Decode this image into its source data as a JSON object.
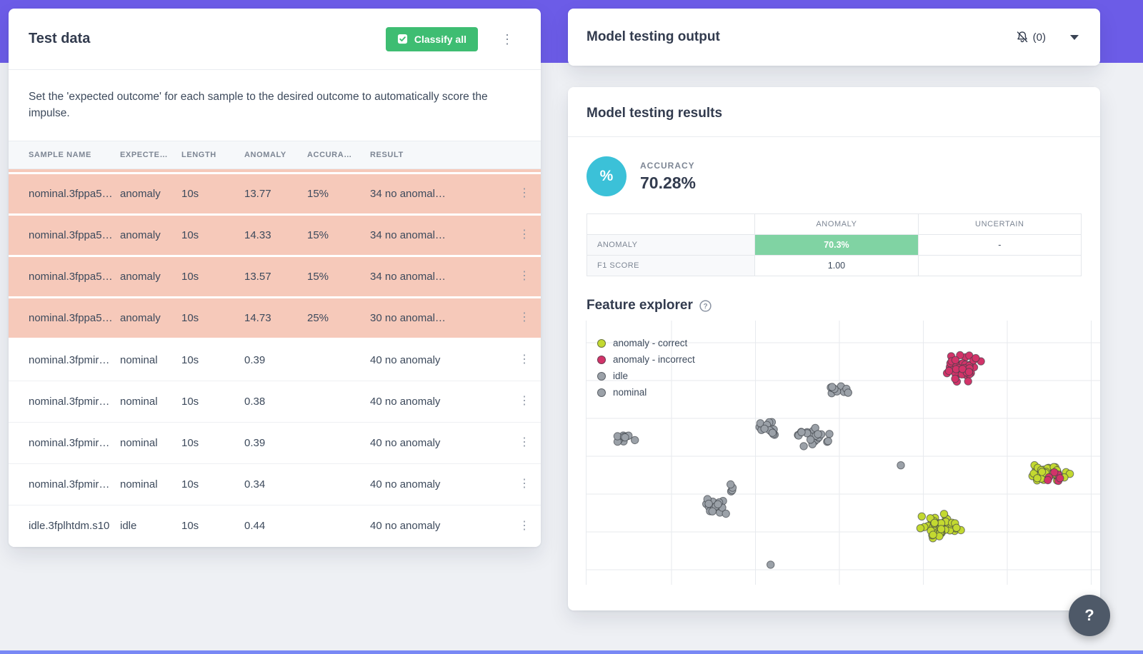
{
  "colors": {
    "accent": "#6C5CE7",
    "green": "#3EBD72",
    "salmon": "#F6C9BA",
    "teal": "#3BC1D8",
    "matrix_green": "#80D3A3"
  },
  "left_panel": {
    "title": "Test data",
    "classify_all_label": "Classify all",
    "menu_icon": "⋮",
    "description": "Set the 'expected outcome' for each sample to the desired outcome to automatically score the impulse.",
    "table": {
      "headers": [
        "SAMPLE NAME",
        "EXPECTE…",
        "LENGTH",
        "ANOMALY",
        "ACCURA…",
        "RESULT"
      ],
      "rows": [
        {
          "sample_name": "nominal.3fppa5…",
          "expected_outcome": "anomaly",
          "length": "10s",
          "anomaly": "13.77",
          "accuracy": "15%",
          "result": "34 no anomal…",
          "highlighted": true
        },
        {
          "sample_name": "nominal.3fppa5…",
          "expected_outcome": "anomaly",
          "length": "10s",
          "anomaly": "14.33",
          "accuracy": "15%",
          "result": "34 no anomal…",
          "highlighted": true
        },
        {
          "sample_name": "nominal.3fppa5…",
          "expected_outcome": "anomaly",
          "length": "10s",
          "anomaly": "13.57",
          "accuracy": "15%",
          "result": "34 no anomal…",
          "highlighted": true
        },
        {
          "sample_name": "nominal.3fppa5…",
          "expected_outcome": "anomaly",
          "length": "10s",
          "anomaly": "14.73",
          "accuracy": "25%",
          "result": "30 no anomal…",
          "highlighted": true
        },
        {
          "sample_name": "nominal.3fpmir…",
          "expected_outcome": "nominal",
          "length": "10s",
          "anomaly": "0.39",
          "accuracy": "",
          "result": "40 no anomaly",
          "highlighted": false
        },
        {
          "sample_name": "nominal.3fpmir…",
          "expected_outcome": "nominal",
          "length": "10s",
          "anomaly": "0.38",
          "accuracy": "",
          "result": "40 no anomaly",
          "highlighted": false
        },
        {
          "sample_name": "nominal.3fpmir…",
          "expected_outcome": "nominal",
          "length": "10s",
          "anomaly": "0.39",
          "accuracy": "",
          "result": "40 no anomaly",
          "highlighted": false
        },
        {
          "sample_name": "nominal.3fpmir…",
          "expected_outcome": "nominal",
          "length": "10s",
          "anomaly": "0.34",
          "accuracy": "",
          "result": "40 no anomaly",
          "highlighted": false
        },
        {
          "sample_name": "idle.3fplhtdm.s10",
          "expected_outcome": "idle",
          "length": "10s",
          "anomaly": "0.44",
          "accuracy": "",
          "result": "40 no anomaly",
          "highlighted": false
        }
      ]
    }
  },
  "right_panel": {
    "header_title": "Model testing output",
    "notifications_count": "(0)",
    "results_card": {
      "title": "Model testing results",
      "accuracy_label": "ACCURACY",
      "accuracy_value": "70.28%",
      "percent_symbol": "%",
      "matrix": {
        "columns": [
          "ANOMALY",
          "UNCERTAIN"
        ],
        "rows": [
          {
            "label": "ANOMALY",
            "values": [
              "70.3%",
              "-"
            ],
            "highlight_col": 0
          },
          {
            "label": "F1 SCORE",
            "values": [
              "1.00",
              ""
            ],
            "highlight_col": -1
          }
        ]
      },
      "feature_explorer_title": "Feature explorer",
      "help_icon": "?"
    }
  },
  "help_fab": "?",
  "chart_data": {
    "type": "scatter",
    "title": "Feature explorer",
    "xlabel": "",
    "ylabel": "",
    "grid": true,
    "axis_tick_labels_visible": false,
    "legend_position": "top-left",
    "legend": [
      {
        "label": "anomaly - correct",
        "color": "#C3D930"
      },
      {
        "label": "anomaly - incorrect",
        "color": "#D23369"
      },
      {
        "label": "idle",
        "color": "#9BA1A8"
      },
      {
        "label": "nominal",
        "color": "#9BA1A8"
      }
    ],
    "clusters": [
      {
        "series": "nominal",
        "color": "#9BA1A8",
        "x": 0.076,
        "y": 0.443,
        "sx": 0.016,
        "sy": 0.01,
        "n": 10
      },
      {
        "series": "nominal",
        "color": "#9BA1A8",
        "x": 0.354,
        "y": 0.408,
        "sx": 0.017,
        "sy": 0.018,
        "n": 14
      },
      {
        "series": "nominal",
        "color": "#9BA1A8",
        "x": 0.441,
        "y": 0.441,
        "sx": 0.025,
        "sy": 0.024,
        "n": 22
      },
      {
        "series": "nominal",
        "color": "#9BA1A8",
        "x": 0.482,
        "y": 0.262,
        "sx": 0.027,
        "sy": 0.012,
        "n": 14
      },
      {
        "series": "nominal",
        "color": "#9BA1A8",
        "x": 0.608,
        "y": 0.549,
        "sx": 0.003,
        "sy": 0.004,
        "n": 1
      },
      {
        "series": "idle",
        "color": "#9BA1A8",
        "x": 0.25,
        "y": 0.703,
        "sx": 0.02,
        "sy": 0.024,
        "n": 16
      },
      {
        "series": "idle",
        "color": "#9BA1A8",
        "x": 0.29,
        "y": 0.64,
        "sx": 0.008,
        "sy": 0.012,
        "n": 4
      },
      {
        "series": "idle",
        "color": "#9BA1A8",
        "x": 0.358,
        "y": 0.924,
        "sx": 0.003,
        "sy": 0.004,
        "n": 1
      },
      {
        "series": "anomaly - incorrect",
        "color": "#D23369",
        "x": 0.729,
        "y": 0.181,
        "sx": 0.022,
        "sy": 0.03,
        "n": 42
      },
      {
        "series": "anomaly - correct",
        "color": "#C3D930",
        "x": 0.694,
        "y": 0.781,
        "sx": 0.026,
        "sy": 0.026,
        "n": 48
      },
      {
        "series": "anomaly - correct",
        "color": "#C3D930",
        "x": 0.9,
        "y": 0.576,
        "sx": 0.023,
        "sy": 0.023,
        "n": 36
      },
      {
        "series": "anomaly - incorrect",
        "color": "#D23369",
        "x": 0.912,
        "y": 0.593,
        "sx": 0.01,
        "sy": 0.012,
        "n": 6
      }
    ]
  }
}
